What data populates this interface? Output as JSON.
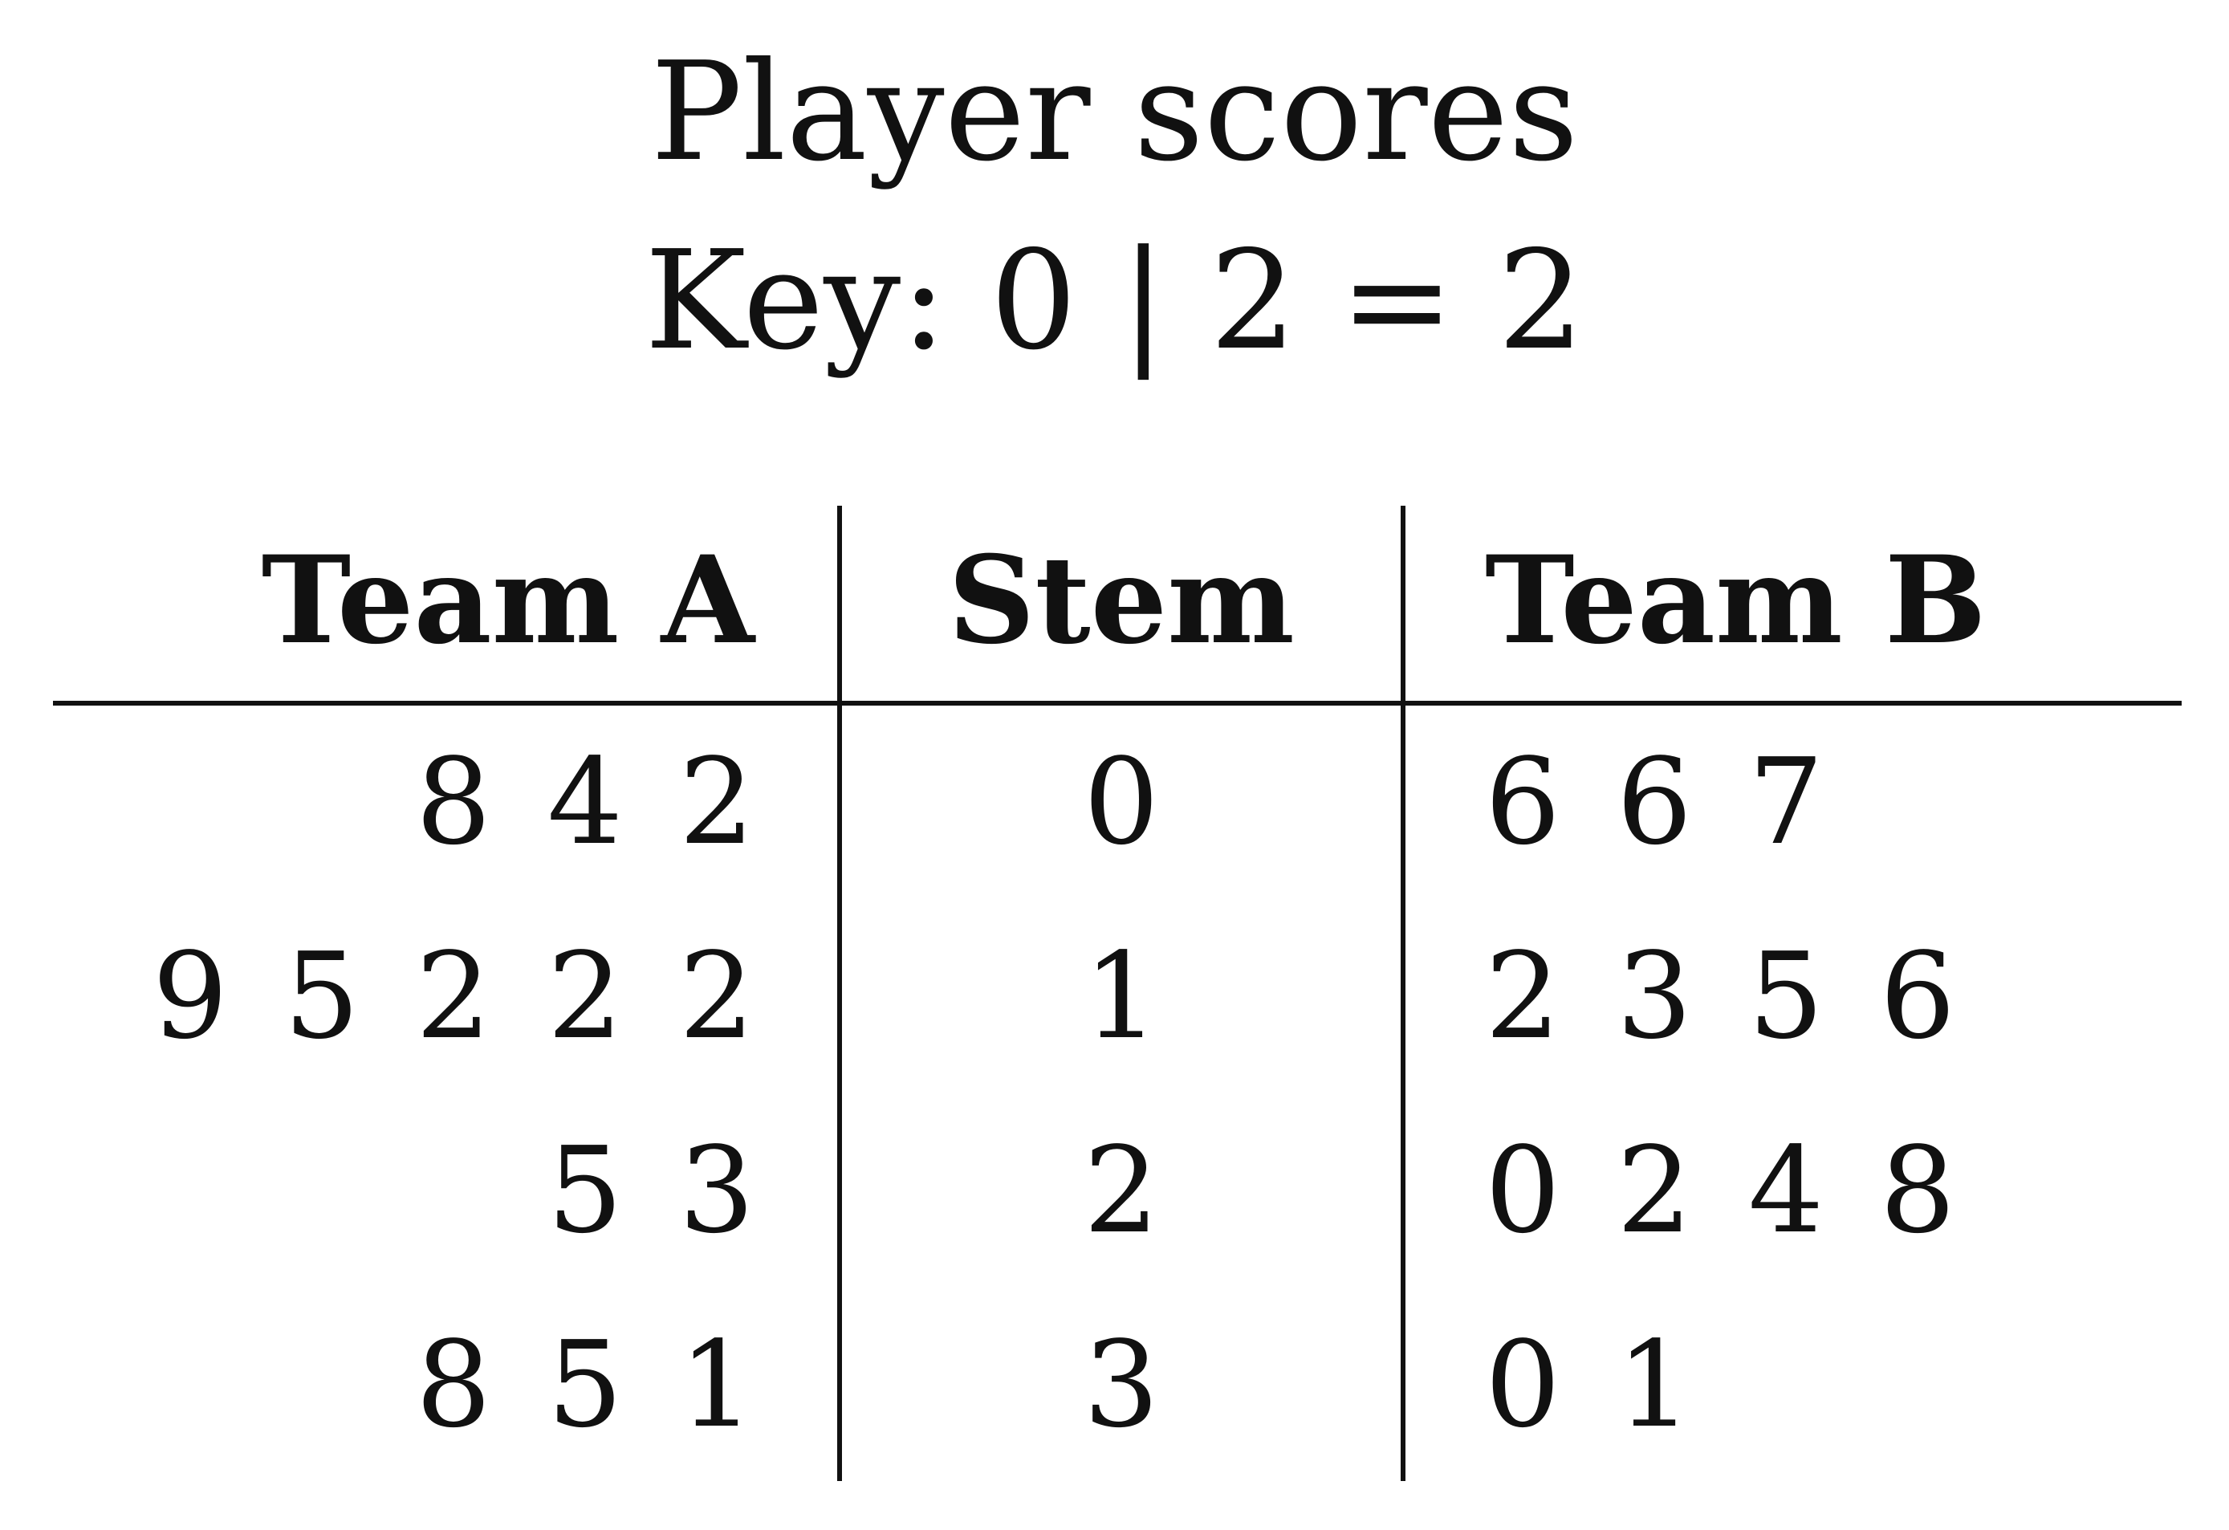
{
  "chart_data": {
    "type": "table",
    "title": "Player scores",
    "key": "Key: 0 | 2 = 2",
    "columns": [
      "Team A",
      "Stem",
      "Team B"
    ],
    "stems": [
      0,
      1,
      2,
      3
    ],
    "team_a_leaves": [
      [
        8,
        4,
        2
      ],
      [
        9,
        5,
        2,
        2,
        2
      ],
      [
        5,
        3
      ],
      [
        8,
        5,
        1
      ]
    ],
    "team_b_leaves": [
      [
        6,
        6,
        7
      ],
      [
        2,
        3,
        5,
        6
      ],
      [
        0,
        2,
        4,
        8
      ],
      [
        0,
        1
      ]
    ]
  }
}
